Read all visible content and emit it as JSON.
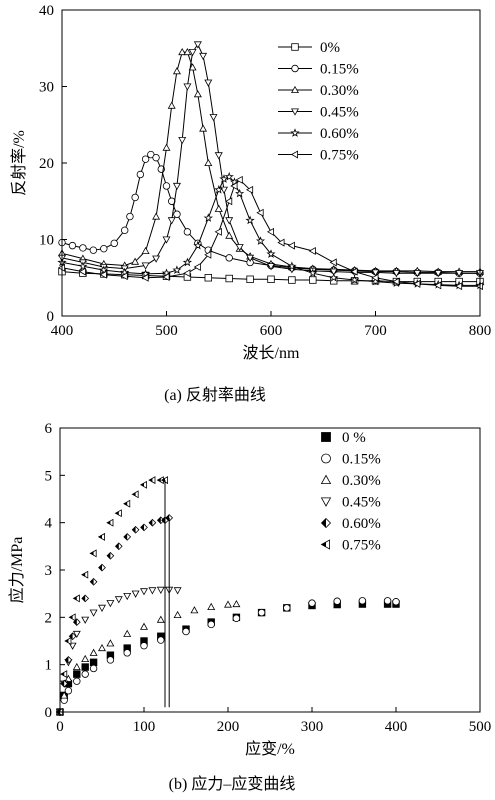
{
  "chart_data": [
    {
      "type": "line",
      "caption": "(a)  反射率曲线",
      "xlabel": "波长/nm",
      "ylabel": "反射率/%",
      "xlim": [
        400,
        800
      ],
      "ylim": [
        0,
        40
      ],
      "xticks": [
        400,
        500,
        600,
        700,
        800
      ],
      "yticks": [
        0,
        10,
        20,
        30,
        40
      ],
      "legend_position": "top-right",
      "series": [
        {
          "name": "0%",
          "marker": "square",
          "x": [
            400,
            420,
            440,
            460,
            480,
            500,
            520,
            540,
            560,
            580,
            600,
            620,
            640,
            660,
            680,
            700,
            720,
            740,
            760,
            780,
            800
          ],
          "y": [
            5.8,
            5.6,
            5.5,
            5.4,
            5.3,
            5.2,
            5.1,
            5.0,
            4.9,
            4.8,
            4.8,
            4.7,
            4.7,
            4.6,
            4.6,
            4.6,
            4.5,
            4.5,
            4.5,
            4.5,
            4.5
          ]
        },
        {
          "name": "0.15%",
          "marker": "circle",
          "x": [
            400,
            410,
            420,
            430,
            440,
            450,
            460,
            465,
            470,
            475,
            480,
            485,
            490,
            495,
            500,
            505,
            510,
            520,
            530,
            540,
            560,
            580,
            600,
            620,
            640,
            660,
            680,
            700,
            720,
            740,
            760,
            780,
            800
          ],
          "y": [
            9.6,
            9.2,
            8.9,
            8.6,
            8.8,
            9.5,
            11.2,
            13.0,
            15.5,
            18.5,
            20.5,
            21.1,
            20.7,
            19.2,
            17.0,
            15.0,
            13.3,
            11.0,
            9.5,
            8.6,
            7.6,
            7.0,
            6.6,
            6.3,
            6.1,
            6.0,
            5.9,
            5.8,
            5.8,
            5.7,
            5.7,
            5.6,
            5.6
          ]
        },
        {
          "name": "0.30%",
          "marker": "triangle-up",
          "x": [
            400,
            420,
            440,
            460,
            470,
            480,
            490,
            500,
            505,
            510,
            515,
            520,
            525,
            530,
            535,
            540,
            550,
            560,
            570,
            580,
            600,
            620,
            640,
            660,
            680,
            700,
            720,
            740,
            760,
            780,
            800
          ],
          "y": [
            8.2,
            7.5,
            6.8,
            6.6,
            7.1,
            8.5,
            13.0,
            22.0,
            27.5,
            32.0,
            34.5,
            34.5,
            32.5,
            29.0,
            24.5,
            20.0,
            14.0,
            10.5,
            8.8,
            7.8,
            6.8,
            6.4,
            6.2,
            6.1,
            6.0,
            5.9,
            5.9,
            5.9,
            5.8,
            5.8,
            5.8
          ]
        },
        {
          "name": "0.45%",
          "marker": "triangle-down",
          "x": [
            400,
            420,
            440,
            460,
            480,
            490,
            500,
            505,
            510,
            515,
            520,
            525,
            530,
            535,
            540,
            545,
            550,
            555,
            560,
            570,
            580,
            600,
            620,
            640,
            660,
            680,
            700,
            720,
            740,
            760,
            780,
            800
          ],
          "y": [
            7.6,
            7.0,
            6.4,
            6.2,
            6.6,
            7.5,
            10.0,
            12.5,
            17.0,
            23.0,
            30.0,
            34.5,
            35.5,
            34.0,
            30.5,
            26.0,
            21.0,
            16.5,
            12.5,
            9.0,
            7.6,
            6.5,
            6.1,
            5.9,
            5.8,
            5.7,
            5.7,
            5.6,
            5.6,
            5.6,
            5.6,
            5.6
          ]
        },
        {
          "name": "0.60%",
          "marker": "star",
          "x": [
            400,
            420,
            440,
            460,
            480,
            500,
            510,
            520,
            530,
            540,
            550,
            555,
            560,
            565,
            570,
            580,
            590,
            600,
            620,
            640,
            660,
            680,
            700,
            720,
            740,
            760,
            780,
            800
          ],
          "y": [
            7.0,
            6.5,
            6.0,
            5.7,
            5.5,
            5.6,
            6.0,
            7.0,
            9.2,
            12.8,
            16.5,
            17.9,
            18.2,
            17.5,
            16.0,
            12.5,
            9.8,
            8.1,
            6.5,
            5.6,
            5.0,
            4.7,
            4.5,
            4.3,
            4.2,
            4.1,
            4.0,
            4.0
          ]
        },
        {
          "name": "0.75%",
          "marker": "triangle-left",
          "x": [
            400,
            420,
            440,
            460,
            480,
            500,
            520,
            530,
            540,
            550,
            560,
            565,
            570,
            580,
            590,
            600,
            610,
            620,
            640,
            660,
            680,
            700,
            720,
            740,
            760,
            780,
            800
          ],
          "y": [
            6.3,
            5.8,
            5.4,
            5.2,
            5.0,
            5.1,
            5.6,
            6.4,
            8.0,
            11.0,
            15.0,
            17.0,
            17.8,
            16.5,
            13.5,
            11.0,
            9.6,
            9.2,
            8.5,
            7.0,
            5.8,
            5.0,
            4.5,
            4.2,
            4.0,
            3.9,
            3.9
          ]
        }
      ]
    },
    {
      "type": "scatter",
      "caption": "(b)  应力–应变曲线",
      "xlabel": "应变/%",
      "ylabel": "应力/MPa",
      "xlim": [
        0,
        500
      ],
      "ylim": [
        0,
        6
      ],
      "xticks": [
        0,
        100,
        200,
        300,
        400,
        500
      ],
      "yticks": [
        0,
        1,
        2,
        3,
        4,
        5,
        6
      ],
      "legend_position": "top-right",
      "series": [
        {
          "name": "0 %",
          "marker": "filled-square",
          "x": [
            0,
            5,
            10,
            20,
            30,
            40,
            60,
            80,
            100,
            120,
            150,
            180,
            210,
            240,
            270,
            300,
            330,
            360,
            390,
            400
          ],
          "y": [
            0,
            0.35,
            0.6,
            0.8,
            0.95,
            1.05,
            1.2,
            1.35,
            1.5,
            1.6,
            1.75,
            1.9,
            2.0,
            2.1,
            2.2,
            2.25,
            2.27,
            2.28,
            2.28,
            2.28
          ]
        },
        {
          "name": "0.15%",
          "marker": "circle",
          "x": [
            0,
            5,
            10,
            20,
            30,
            40,
            60,
            80,
            100,
            120,
            150,
            180,
            210,
            240,
            270,
            300,
            330,
            360,
            390,
            400
          ],
          "y": [
            0,
            0.25,
            0.45,
            0.65,
            0.8,
            0.92,
            1.1,
            1.25,
            1.4,
            1.52,
            1.7,
            1.85,
            1.98,
            2.1,
            2.2,
            2.3,
            2.34,
            2.35,
            2.35,
            2.33
          ]
        },
        {
          "name": "0.30%",
          "marker": "triangle-up",
          "x": [
            0,
            5,
            10,
            20,
            30,
            40,
            50,
            60,
            80,
            100,
            120,
            140,
            160,
            180,
            200,
            210
          ],
          "y": [
            0,
            0.35,
            0.7,
            0.95,
            1.12,
            1.25,
            1.35,
            1.45,
            1.65,
            1.8,
            1.95,
            2.05,
            2.15,
            2.22,
            2.27,
            2.28
          ]
        },
        {
          "name": "0.45%",
          "marker": "triangle-down",
          "x": [
            0,
            5,
            10,
            15,
            20,
            30,
            40,
            50,
            60,
            70,
            80,
            90,
            100,
            110,
            120,
            130,
            140
          ],
          "y": [
            0,
            0.6,
            1.05,
            1.4,
            1.65,
            1.95,
            2.1,
            2.2,
            2.3,
            2.38,
            2.45,
            2.5,
            2.55,
            2.57,
            2.58,
            2.58,
            2.57
          ]
        },
        {
          "name": "0.60%",
          "marker": "half-diamond",
          "x": [
            0,
            5,
            10,
            15,
            20,
            30,
            40,
            50,
            60,
            70,
            80,
            90,
            100,
            110,
            120,
            125,
            130
          ],
          "y": [
            0,
            0.6,
            1.1,
            1.6,
            1.9,
            2.4,
            2.75,
            3.05,
            3.3,
            3.5,
            3.7,
            3.85,
            3.9,
            4.0,
            4.05,
            4.05,
            4.1
          ]
        },
        {
          "name": "0.75%",
          "marker": "half-triangle-left",
          "x": [
            0,
            5,
            10,
            15,
            20,
            30,
            40,
            50,
            60,
            70,
            80,
            90,
            100,
            110,
            120,
            125
          ],
          "y": [
            0,
            0.8,
            1.5,
            2.0,
            2.4,
            2.9,
            3.35,
            3.7,
            4.0,
            4.2,
            4.4,
            4.6,
            4.8,
            4.9,
            4.9,
            4.9
          ]
        }
      ]
    }
  ]
}
